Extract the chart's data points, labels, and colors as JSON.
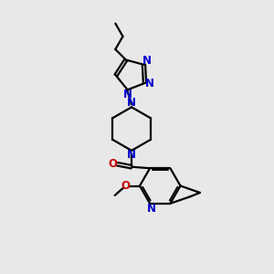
{
  "background_color": "#e8e8e8",
  "bond_color": "#000000",
  "nitrogen_color": "#0000cc",
  "oxygen_color": "#cc0000",
  "line_width": 1.6,
  "font_size": 8.5,
  "figsize": [
    3.0,
    3.0
  ],
  "dpi": 100,
  "xlim": [
    1.0,
    9.0
  ],
  "ylim": [
    0.5,
    10.5
  ]
}
